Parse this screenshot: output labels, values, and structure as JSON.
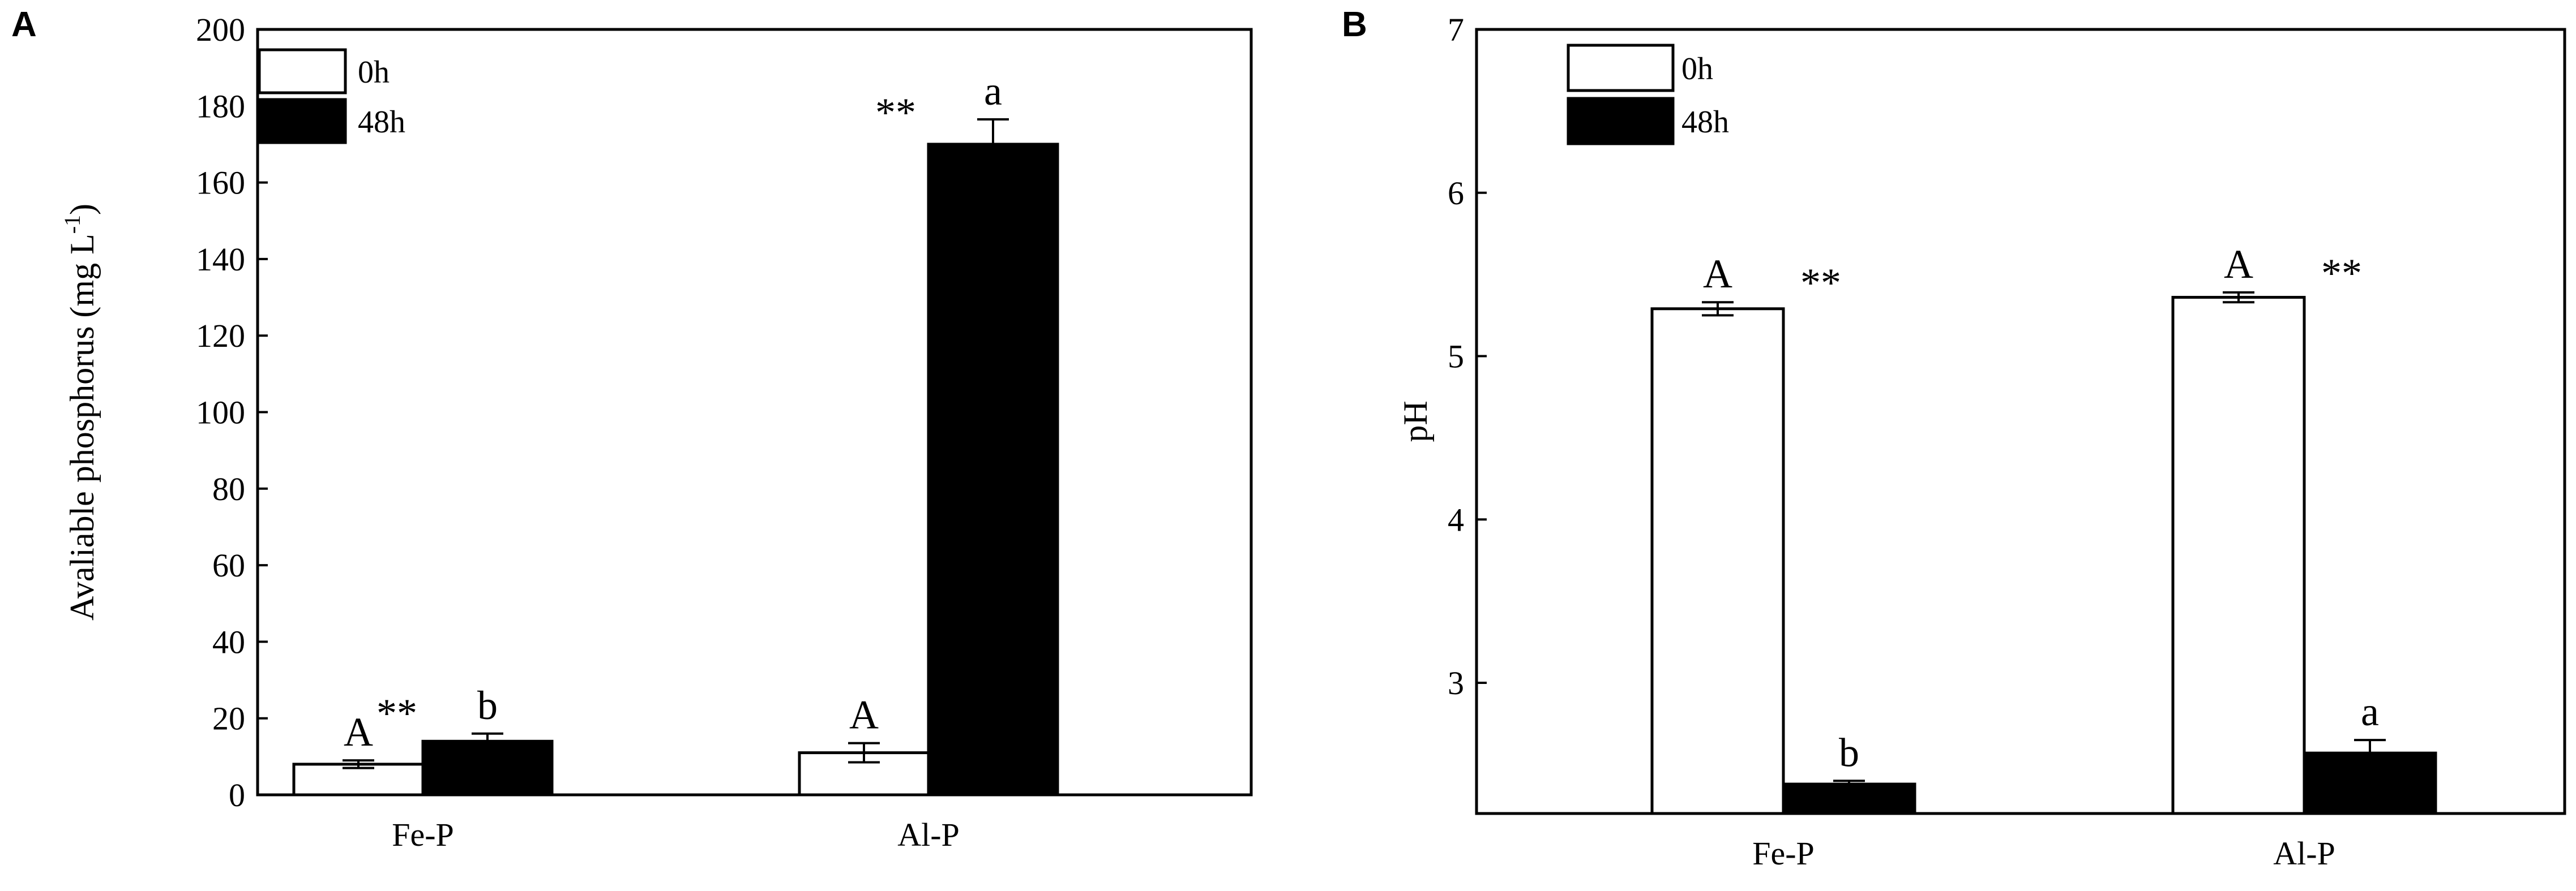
{
  "chart_data": [
    {
      "panel_label": "A",
      "type": "bar",
      "title": "",
      "xlabel": "",
      "ylabel": "Avaliable phosphorus (mg L",
      "ylabel_superscript": "-1",
      "ylabel_suffix": ")",
      "ylim": [
        0,
        200
      ],
      "ytick_values": [
        0,
        20,
        40,
        60,
        80,
        100,
        120,
        140,
        160,
        180,
        200
      ],
      "ytick_labels": [
        "0",
        "20",
        "40",
        "60",
        "80",
        "100",
        "120",
        "140",
        "160",
        "180",
        "200"
      ],
      "categories": [
        "Fe-P",
        "Al-P"
      ],
      "legend_position": "top-left",
      "grid": false,
      "series": [
        {
          "name": "0h",
          "fill": "#ffffff",
          "values": [
            8,
            11
          ],
          "errors": [
            1,
            2.5
          ],
          "letters": [
            "A",
            "A"
          ],
          "stars": [
            "",
            ""
          ]
        },
        {
          "name": "48h",
          "fill": "#000000",
          "values": [
            14,
            170
          ],
          "errors": [
            2,
            6.5
          ],
          "letters": [
            "b",
            "a"
          ],
          "stars": [
            "**",
            "**"
          ]
        }
      ]
    },
    {
      "panel_label": "B",
      "type": "bar",
      "title": "",
      "xlabel": "",
      "ylabel": "pH",
      "ylabel_superscript": "",
      "ylabel_suffix": "",
      "ylim": [
        2.2,
        7
      ],
      "ytick_values": [
        3,
        4,
        5,
        6,
        7
      ],
      "ytick_labels": [
        "3",
        "4",
        "5",
        "6",
        "7"
      ],
      "categories": [
        "Fe-P",
        "Al-P"
      ],
      "legend_position": "top-left",
      "grid": false,
      "series": [
        {
          "name": "0h",
          "fill": "#ffffff",
          "values": [
            5.29,
            5.36
          ],
          "errors": [
            0.04,
            0.03
          ],
          "letters": [
            "A",
            "A"
          ],
          "stars": [
            "**",
            "**"
          ]
        },
        {
          "name": "48h",
          "fill": "#000000",
          "values": [
            2.38,
            2.57
          ],
          "errors": [
            0.02,
            0.08
          ],
          "letters": [
            "b",
            "a"
          ],
          "stars": [
            "",
            ""
          ]
        }
      ]
    }
  ]
}
